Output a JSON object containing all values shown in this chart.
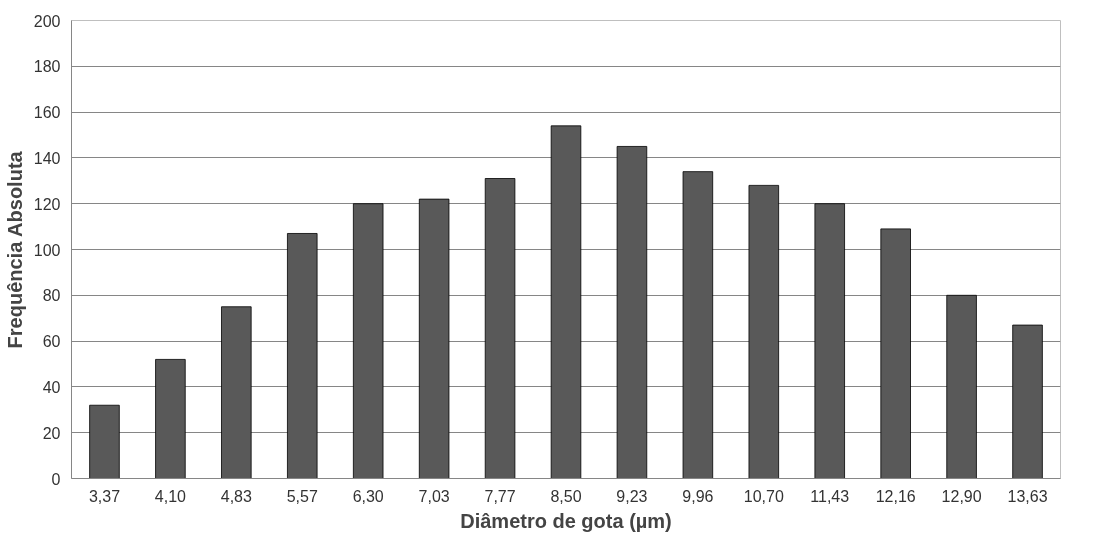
{
  "chart_data": {
    "type": "bar",
    "xlabel": "Diâmetro de gota (µm)",
    "ylabel": "Frequência Absoluta",
    "categories": [
      "3,37",
      "4,10",
      "4,83",
      "5,57",
      "6,30",
      "7,03",
      "7,77",
      "8,50",
      "9,23",
      "9,96",
      "10,70",
      "11,43",
      "12,16",
      "12,90",
      "13,63"
    ],
    "values": [
      32,
      52,
      75,
      107,
      120,
      122,
      131,
      154,
      145,
      134,
      128,
      120,
      109,
      80,
      67
    ],
    "color": "#595959",
    "ylim": [
      0,
      200
    ],
    "yticks": [
      0,
      20,
      40,
      60,
      80,
      100,
      120,
      140,
      160,
      180,
      200
    ],
    "grid": "y"
  }
}
